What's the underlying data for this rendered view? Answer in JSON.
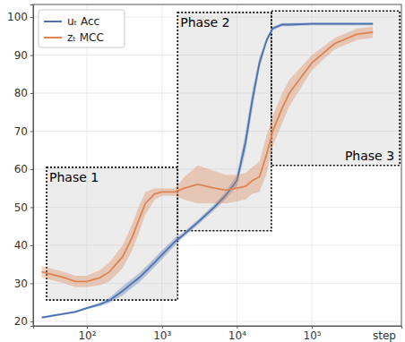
{
  "chart_data": {
    "type": "line",
    "x_label": "step",
    "log": "x",
    "grid": true,
    "legend": "upper left",
    "xlim": [
      19.2,
      1560000
    ],
    "ylim": [
      18.8,
      103.3
    ],
    "xticks": [
      {
        "value": 100,
        "label": "10²"
      },
      {
        "value": 1000,
        "label": "10³"
      },
      {
        "value": 10000,
        "label": "10⁴"
      },
      {
        "value": 100000,
        "label": "10⁵"
      }
    ],
    "yticks": [
      20,
      30,
      40,
      50,
      60,
      70,
      80,
      90,
      100
    ],
    "x": [
      25,
      50,
      70,
      100,
      150,
      200,
      300,
      400,
      500,
      600,
      800,
      1000,
      1500,
      2000,
      3000,
      5000,
      7000,
      10000,
      13000,
      16000,
      20000,
      25000,
      30000,
      40000,
      50000,
      100000,
      200000,
      400000,
      650000
    ],
    "series": [
      {
        "name": "uₜ Acc",
        "color": "#4c72b0",
        "line_style": "solid",
        "values": [
          21,
          22,
          22.5,
          23.5,
          24.5,
          25.5,
          28,
          30,
          31.5,
          33,
          35.5,
          37.5,
          41,
          43,
          46,
          50,
          53,
          57,
          67,
          78,
          88,
          94,
          97,
          98,
          98,
          98.2,
          98.2,
          98.2,
          98.2
        ],
        "lower": [
          20.7,
          21.7,
          22.2,
          23.2,
          24.0,
          24.8,
          26.8,
          28.8,
          30.3,
          31.8,
          34.3,
          36.3,
          40.0,
          42.3,
          45.3,
          49.2,
          52.0,
          55.5,
          64.5,
          75.5,
          86.5,
          93.2,
          96.5,
          97.6,
          97.6,
          97.8,
          97.8,
          97.8,
          97.8
        ],
        "upper": [
          21.3,
          22.3,
          22.8,
          23.8,
          25.0,
          26.2,
          29.2,
          31.2,
          32.7,
          34.2,
          36.7,
          38.7,
          42.0,
          43.7,
          46.7,
          50.8,
          54.0,
          58.5,
          69.5,
          80.5,
          89.5,
          94.8,
          97.5,
          98.4,
          98.4,
          98.6,
          98.6,
          98.6,
          98.6
        ]
      },
      {
        "name": "zₜ MCC",
        "color": "#dd8452",
        "line_style": "solid",
        "values": [
          33,
          31.5,
          30.5,
          30.5,
          31.5,
          33,
          37,
          42,
          47,
          51,
          53.5,
          54,
          54,
          55,
          56,
          55,
          54.5,
          55,
          55.5,
          57,
          58,
          64,
          70,
          76,
          80,
          88,
          93,
          95.5,
          96
        ],
        "lower": [
          31.5,
          30,
          29,
          29,
          29.5,
          30.5,
          34,
          38.5,
          43.5,
          48,
          52,
          53,
          53,
          52,
          51,
          51,
          51,
          51.5,
          52,
          53.5,
          54,
          59,
          66,
          72,
          76.5,
          86,
          91.5,
          94,
          94.5
        ],
        "upper": [
          34.5,
          33,
          32,
          32,
          33.5,
          35.5,
          40,
          45.5,
          50.5,
          54,
          55,
          55,
          55,
          58,
          61,
          59.5,
          58.5,
          58.5,
          59,
          60.5,
          62,
          69,
          74,
          80,
          83.5,
          90,
          94.5,
          97,
          97.5
        ]
      }
    ],
    "annotations": [
      {
        "text": "Phase 1",
        "x": [
          29,
          1620
        ],
        "y": [
          25.6,
          60.5
        ]
      },
      {
        "text": "Phase 2",
        "x": [
          1620,
          28800
        ],
        "y": [
          43.8,
          101.2
        ]
      },
      {
        "text": "Phase 3",
        "x": [
          28800,
          1480000
        ],
        "y": [
          61.0,
          101.6
        ]
      }
    ]
  }
}
